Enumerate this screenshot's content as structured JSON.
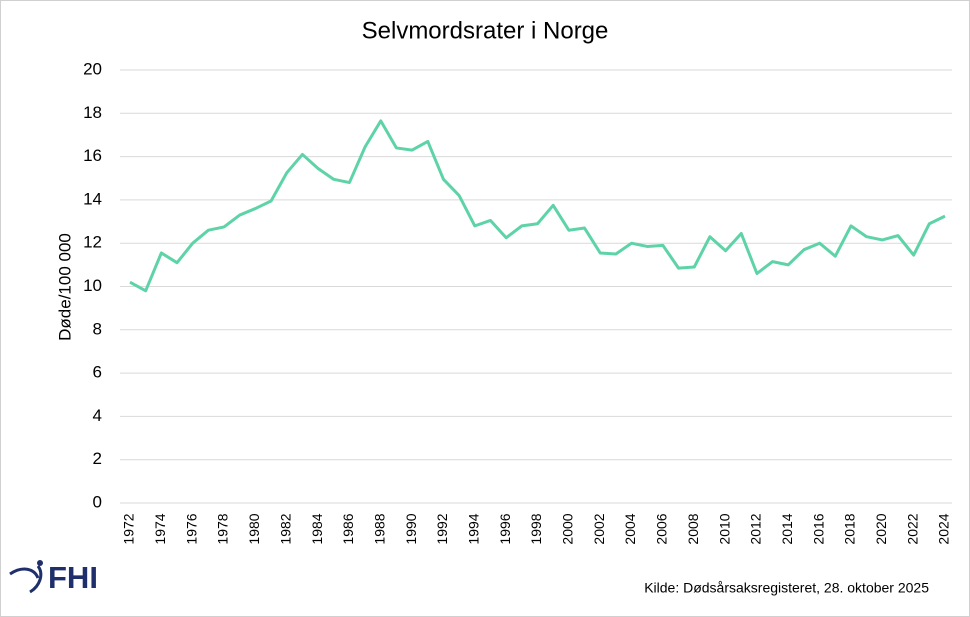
{
  "chart_data": {
    "type": "line",
    "title": "Selvmordsrater i Norge",
    "y_label": "Døde/100 000",
    "source": "Kilde: Dødsårsaksregisteret, 28. oktober 2025",
    "logo": "FHI",
    "x": [
      1972,
      1973,
      1974,
      1975,
      1976,
      1977,
      1978,
      1979,
      1980,
      1981,
      1982,
      1983,
      1984,
      1985,
      1986,
      1987,
      1988,
      1989,
      1990,
      1991,
      1992,
      1993,
      1994,
      1995,
      1996,
      1997,
      1998,
      1999,
      2000,
      2001,
      2002,
      2003,
      2004,
      2005,
      2006,
      2007,
      2008,
      2009,
      2010,
      2011,
      2012,
      2013,
      2014,
      2015,
      2016,
      2017,
      2018,
      2019,
      2020,
      2021,
      2022,
      2023,
      2024
    ],
    "series": [
      {
        "name": "Selvmordsrate",
        "color": "#5ed3a8",
        "values": [
          10.2,
          9.8,
          11.55,
          11.1,
          12.0,
          12.6,
          12.75,
          13.3,
          13.6,
          13.95,
          15.25,
          16.1,
          15.45,
          14.95,
          14.8,
          16.45,
          17.65,
          16.4,
          16.3,
          16.7,
          14.95,
          14.2,
          12.8,
          13.05,
          12.25,
          12.8,
          12.9,
          13.75,
          12.6,
          12.7,
          11.55,
          11.5,
          12.0,
          11.85,
          11.9,
          10.85,
          10.9,
          12.3,
          11.65,
          12.45,
          10.6,
          11.15,
          11.0,
          11.7,
          12.0,
          11.4,
          12.8,
          12.3,
          12.15,
          12.35,
          11.45,
          12.9,
          13.25
        ]
      }
    ],
    "xticks": [
      1972,
      1974,
      1976,
      1978,
      1980,
      1982,
      1984,
      1986,
      1988,
      1990,
      1992,
      1994,
      1996,
      1998,
      2000,
      2002,
      2004,
      2006,
      2008,
      2010,
      2012,
      2014,
      2016,
      2018,
      2020,
      2022,
      2024
    ],
    "ylim": [
      0,
      20
    ],
    "yticks": [
      0,
      2,
      4,
      6,
      8,
      10,
      12,
      14,
      16,
      18,
      20
    ],
    "grid": true
  }
}
